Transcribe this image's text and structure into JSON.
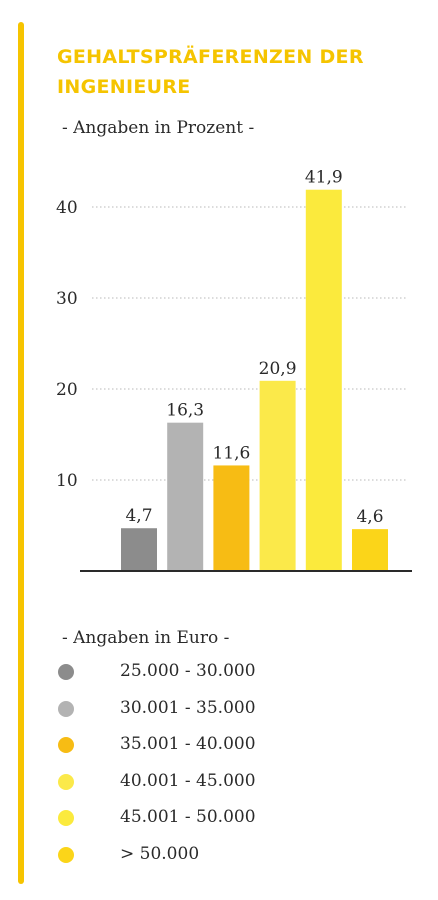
{
  "title_line1": "GEHALTSPRÄFERENZEN DER",
  "title_line2": "INGENIEURE",
  "subtitle": "- Angaben in Prozent -",
  "legend_title": "- Angaben in Euro -",
  "colors": {
    "accent": "#f6c400",
    "title": "#f5c400"
  },
  "chart_data": {
    "type": "bar",
    "categories": [
      "25.000 - 30.000",
      "30.001 - 35.000",
      "35.001 - 40.000",
      "40.001 - 45.000",
      "45.001 - 50.000",
      "> 50.000"
    ],
    "values": [
      4.7,
      16.3,
      11.6,
      20.9,
      41.9,
      4.6
    ],
    "value_labels": [
      "4,7",
      "16,3",
      "11,6",
      "20,9",
      "41,9",
      "4,6"
    ],
    "colors": [
      "#8c8c8c",
      "#b3b3b3",
      "#f7bc14",
      "#fbe94a",
      "#fbea3d",
      "#fbd519"
    ],
    "yticks": [
      10,
      20,
      30,
      40
    ],
    "ylim": [
      0,
      44
    ],
    "grid": true,
    "legend_position": "bottom"
  }
}
